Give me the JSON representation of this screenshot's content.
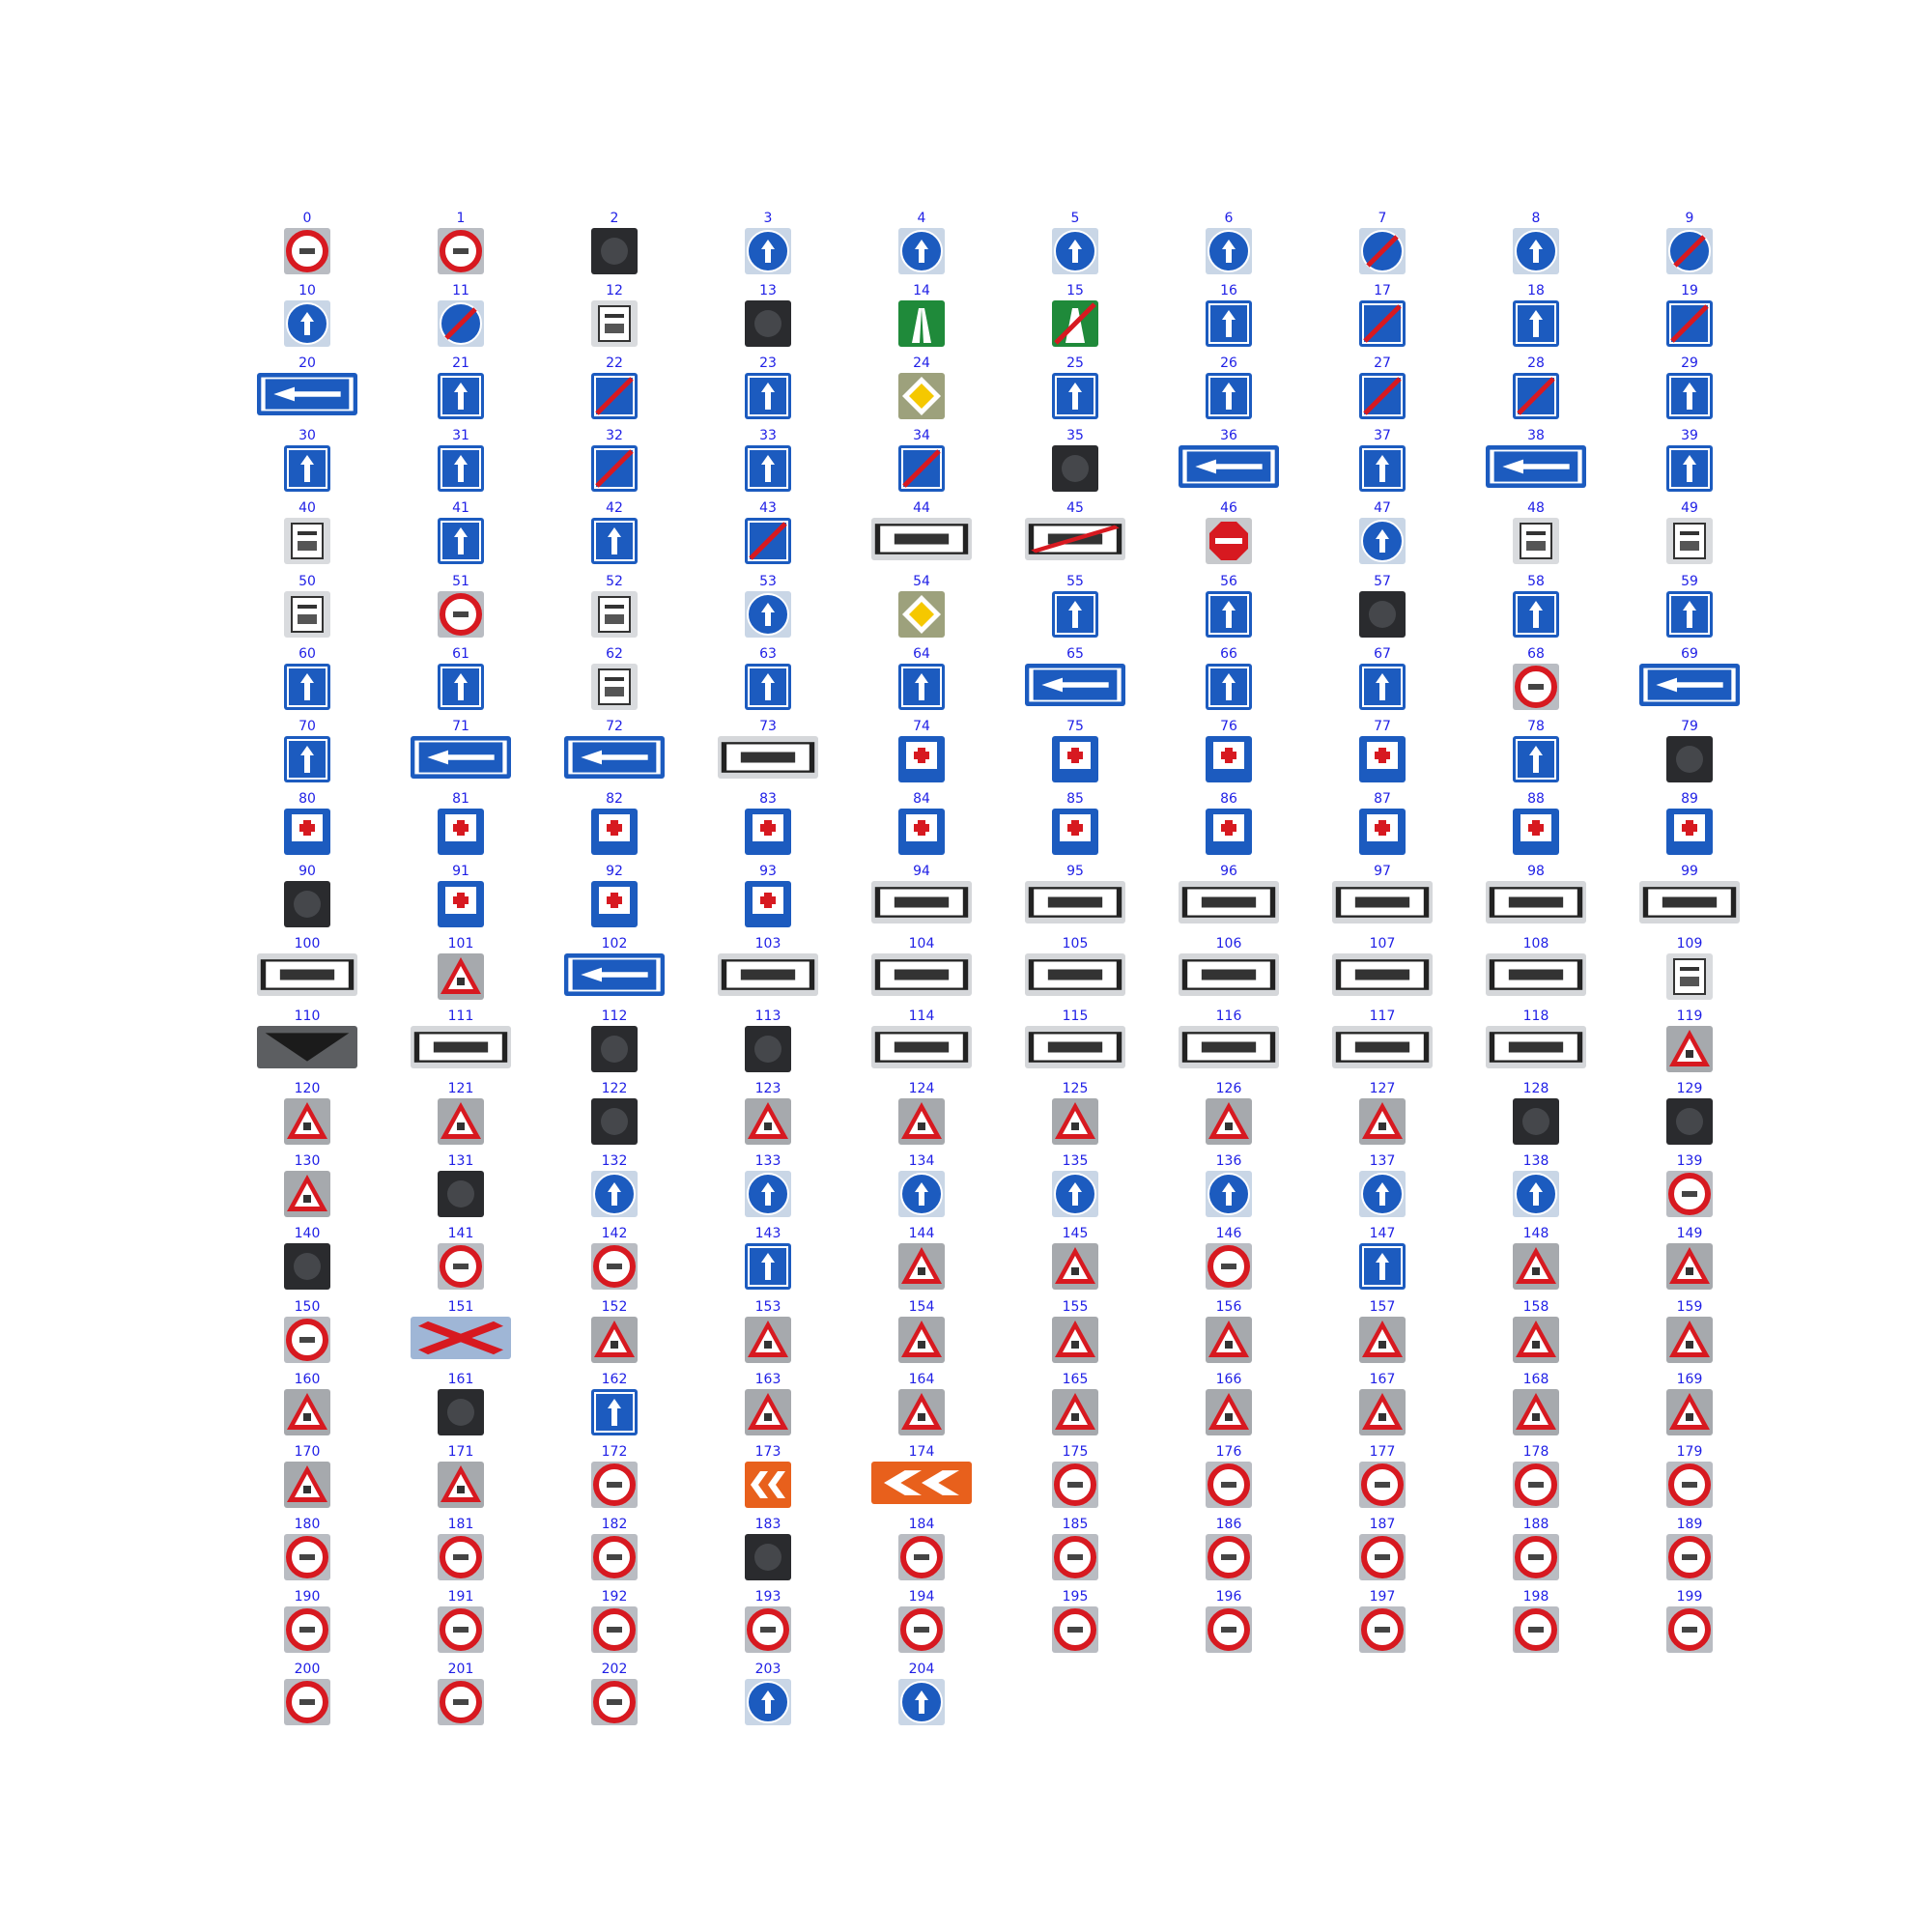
{
  "title": "",
  "labels": [
    "0",
    "1",
    "2",
    "3",
    "4",
    "5",
    "6",
    "7",
    "8",
    "9",
    "10",
    "11",
    "12",
    "13",
    "14",
    "15",
    "16",
    "17",
    "18",
    "19",
    "20",
    "21",
    "22",
    "23",
    "24",
    "25",
    "26",
    "27",
    "28",
    "29",
    "30",
    "31",
    "32",
    "33",
    "34",
    "35",
    "36",
    "37",
    "38",
    "39",
    "40",
    "41",
    "42",
    "43",
    "44",
    "45",
    "46",
    "47",
    "48",
    "49",
    "50",
    "51",
    "52",
    "53",
    "54",
    "55",
    "56",
    "57",
    "58",
    "59",
    "60",
    "61",
    "62",
    "63",
    "64",
    "65",
    "66",
    "67",
    "68",
    "69",
    "70",
    "71",
    "72",
    "73",
    "74",
    "75",
    "76",
    "77",
    "78",
    "79",
    "80",
    "81",
    "82",
    "83",
    "84",
    "85",
    "86",
    "87",
    "88",
    "89",
    "90",
    "91",
    "92",
    "93",
    "94",
    "95",
    "96",
    "97",
    "98",
    "99",
    "100",
    "101",
    "102",
    "103",
    "104",
    "105",
    "106",
    "107",
    "108",
    "109",
    "110",
    "111",
    "112",
    "113",
    "114",
    "115",
    "116",
    "117",
    "118",
    "119",
    "120",
    "121",
    "122",
    "123",
    "124",
    "125",
    "126",
    "127",
    "128",
    "129",
    "130",
    "131",
    "132",
    "133",
    "134",
    "135",
    "136",
    "137",
    "138",
    "139",
    "140",
    "141",
    "142",
    "143",
    "144",
    "145",
    "146",
    "147",
    "148",
    "149",
    "150",
    "151",
    "152",
    "153",
    "154",
    "155",
    "156",
    "157",
    "158",
    "159",
    "160",
    "161",
    "162",
    "163",
    "164",
    "165",
    "166",
    "167",
    "168",
    "169",
    "170",
    "171",
    "172",
    "173",
    "174",
    "175",
    "176",
    "177",
    "178",
    "179",
    "180",
    "181",
    "182",
    "183",
    "184",
    "185",
    "186",
    "187",
    "188",
    "189",
    "190",
    "191",
    "192",
    "193",
    "194",
    "195",
    "196",
    "197",
    "198",
    "199",
    "200",
    "201",
    "202",
    "203",
    "204"
  ],
  "sign_kinds": {
    "0": "prohibitory",
    "1": "prohibitory",
    "2": "dark",
    "3": "mandatory",
    "4": "mandatory",
    "5": "mandatory",
    "6": "mandatory",
    "7": "mandatory-end",
    "8": "mandatory",
    "9": "mandatory-end",
    "10": "mandatory",
    "11": "mandatory-end",
    "12": "plate",
    "13": "dark",
    "14": "info-green",
    "15": "info-green-end",
    "16": "info",
    "17": "info-end",
    "18": "info",
    "19": "info-end",
    "20": "wide-info",
    "21": "info",
    "22": "info-end",
    "23": "info",
    "24": "priority",
    "25": "info",
    "26": "info",
    "27": "info-end",
    "28": "info-end",
    "29": "info",
    "30": "info",
    "31": "info",
    "32": "info-end",
    "33": "info",
    "34": "info-end",
    "35": "dark",
    "36": "wide-info",
    "37": "info",
    "38": "wide-info",
    "39": "info",
    "40": "plate",
    "41": "info",
    "42": "info",
    "43": "info-end",
    "44": "wide-plate",
    "45": "wide-plate-end",
    "46": "stop",
    "47": "mandatory",
    "48": "plate",
    "49": "plate",
    "50": "plate",
    "51": "prohibitory",
    "52": "plate",
    "53": "mandatory",
    "54": "priority",
    "55": "info",
    "56": "info",
    "57": "dark",
    "58": "info",
    "59": "info",
    "60": "info",
    "61": "info",
    "62": "plate",
    "63": "info",
    "64": "info",
    "65": "wide-info",
    "66": "info",
    "67": "info",
    "68": "prohibitory",
    "69": "wide-info",
    "70": "info",
    "71": "wide-info",
    "72": "wide-info",
    "73": "wide-plate",
    "74": "service",
    "75": "service",
    "76": "service",
    "77": "service",
    "78": "info",
    "79": "dark",
    "80": "service",
    "81": "service",
    "82": "service",
    "83": "service",
    "84": "service",
    "85": "service",
    "86": "service",
    "87": "service",
    "88": "service",
    "89": "service",
    "90": "dark",
    "91": "service",
    "92": "service",
    "93": "service",
    "94": "wide-plate",
    "95": "wide-plate",
    "96": "wide-plate",
    "97": "wide-plate",
    "98": "wide-plate",
    "99": "wide-plate",
    "100": "wide-plate",
    "101": "warning",
    "102": "wide-info",
    "103": "wide-plate",
    "104": "wide-plate",
    "105": "wide-plate",
    "106": "wide-plate",
    "107": "wide-plate",
    "108": "wide-plate",
    "109": "plate",
    "110": "wide-dark",
    "111": "wide-plate",
    "112": "dark",
    "113": "dark",
    "114": "wide-plate",
    "115": "wide-plate",
    "116": "wide-plate",
    "117": "wide-plate",
    "118": "wide-plate",
    "119": "warning",
    "120": "warning",
    "121": "warning",
    "122": "dark",
    "123": "warning",
    "124": "warning",
    "125": "warning",
    "126": "warning",
    "127": "warning",
    "128": "dark",
    "129": "dark",
    "130": "warning",
    "131": "dark",
    "132": "mandatory",
    "133": "mandatory",
    "134": "mandatory",
    "135": "mandatory",
    "136": "mandatory",
    "137": "mandatory",
    "138": "mandatory",
    "139": "prohibitory",
    "140": "dark",
    "141": "prohibitory",
    "142": "prohibitory",
    "143": "info",
    "144": "warning",
    "145": "warning",
    "146": "prohibitory",
    "147": "info",
    "148": "warning",
    "149": "warning",
    "150": "prohibitory",
    "151": "wide-warning",
    "152": "warning",
    "153": "warning",
    "154": "warning",
    "155": "warning",
    "156": "warning",
    "157": "warning",
    "158": "warning",
    "159": "warning",
    "160": "warning",
    "161": "dark",
    "162": "info",
    "163": "warning",
    "164": "warning",
    "165": "warning",
    "166": "warning",
    "167": "warning",
    "168": "warning",
    "169": "warning",
    "170": "warning",
    "171": "warning",
    "172": "prohibitory",
    "173": "chevron",
    "174": "wide-chevron",
    "175": "prohibitory",
    "176": "prohibitory",
    "177": "prohibitory",
    "178": "prohibitory",
    "179": "prohibitory",
    "180": "prohibitory",
    "181": "prohibitory",
    "182": "prohibitory",
    "183": "dark",
    "184": "prohibitory",
    "185": "prohibitory",
    "186": "prohibitory",
    "187": "prohibitory",
    "188": "prohibitory",
    "189": "prohibitory",
    "190": "prohibitory",
    "191": "prohibitory",
    "192": "prohibitory",
    "193": "prohibitory",
    "194": "prohibitory",
    "195": "prohibitory",
    "196": "prohibitory",
    "197": "prohibitory",
    "198": "prohibitory",
    "199": "prohibitory",
    "200": "prohibitory",
    "201": "prohibitory",
    "202": "prohibitory",
    "203": "mandatory",
    "204": "mandatory"
  },
  "colors": {
    "label": "#1f1fe6",
    "red": "#d71920",
    "blue": "#1c5bbf",
    "green": "#1f8a3a",
    "dark": "#222222",
    "white": "#ffffff",
    "yellow": "#f5c800",
    "orange": "#e8601c"
  }
}
